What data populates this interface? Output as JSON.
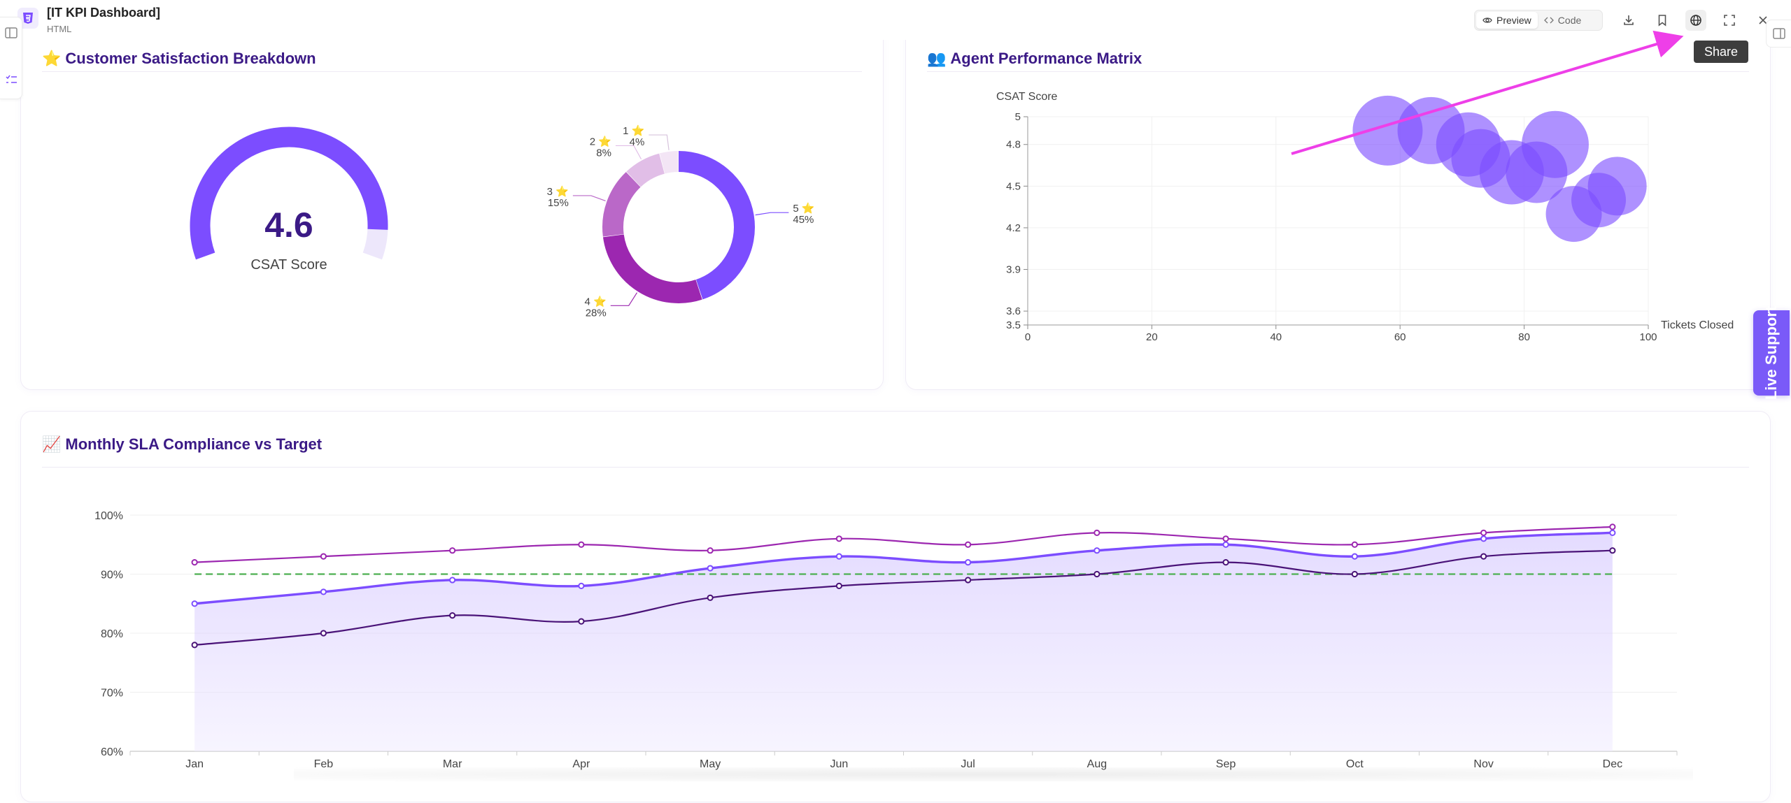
{
  "header": {
    "file_title": "[IT KPI Dashboard]",
    "file_type": "HTML",
    "preview_label": "Preview",
    "code_label": "Code",
    "share_tooltip": "Share",
    "icons": [
      "download-icon",
      "bookmark-icon",
      "globe-icon",
      "expand-icon",
      "close-icon"
    ]
  },
  "live_support_label": "Live Support",
  "csat_card": {
    "icon": "⭐",
    "title": "Customer Satisfaction Breakdown",
    "gauge": {
      "value": "4.6",
      "label": "CSAT Score",
      "fraction": 0.92
    }
  },
  "agent_card": {
    "icon": "👥",
    "title": "Agent Performance Matrix"
  },
  "sla_card": {
    "icon": "📈",
    "title": "Monthly SLA Compliance vs Target"
  },
  "colors": {
    "accent": "#7c4dff",
    "title": "#3b1a86",
    "target_line": "#4caf50",
    "series_dark": "#4a1378",
    "series_mid": "#7c4dff",
    "series_top": "#9c27b0"
  },
  "chart_data": [
    {
      "type": "pie",
      "variant": "doughnut",
      "labels": [
        "5 ⭐",
        "4 ⭐",
        "3 ⭐",
        "2 ⭐",
        "1 ⭐"
      ],
      "values": [
        45,
        28,
        15,
        8,
        4
      ],
      "value_labels": [
        "45%",
        "28%",
        "15%",
        "8%",
        "4%"
      ],
      "colors": [
        "#7c4dff",
        "#9c27b0",
        "#ba68c8",
        "#e1bee7",
        "#f3e5f5"
      ]
    },
    {
      "type": "scatter",
      "variant": "bubble",
      "xlabel": "Tickets Closed",
      "ylabel": "CSAT Score",
      "xlim": [
        0,
        100
      ],
      "ylim": [
        3.5,
        5
      ],
      "x_ticks": [
        "0",
        "20",
        "40",
        "60",
        "80",
        "100"
      ],
      "y_ticks": [
        "3.5",
        "3.6",
        "3.9",
        "4.2",
        "4.5",
        "4.8",
        "5"
      ],
      "points": [
        {
          "x": 58,
          "y": 4.9
        },
        {
          "x": 65,
          "y": 4.9
        },
        {
          "x": 71,
          "y": 4.8
        },
        {
          "x": 73,
          "y": 4.7
        },
        {
          "x": 78,
          "y": 4.6
        },
        {
          "x": 82,
          "y": 4.6
        },
        {
          "x": 85,
          "y": 4.8
        },
        {
          "x": 88,
          "y": 4.3
        },
        {
          "x": 92,
          "y": 4.4
        },
        {
          "x": 95,
          "y": 4.5
        }
      ]
    },
    {
      "type": "line",
      "categories": [
        "Jan",
        "Feb",
        "Mar",
        "Apr",
        "May",
        "Jun",
        "Jul",
        "Aug",
        "Sep",
        "Oct",
        "Nov",
        "Dec"
      ],
      "ylim": [
        60,
        100
      ],
      "y_ticks": [
        "60%",
        "70%",
        "80%",
        "90%",
        "100%"
      ],
      "target": 90,
      "series": [
        {
          "values": [
            92,
            93,
            94,
            95,
            94,
            96,
            95,
            97,
            96,
            95,
            97,
            98
          ]
        },
        {
          "values": [
            85,
            87,
            89,
            88,
            91,
            93,
            92,
            94,
            95,
            93,
            96,
            97
          ]
        },
        {
          "values": [
            78,
            80,
            83,
            82,
            86,
            88,
            89,
            90,
            92,
            90,
            93,
            94
          ]
        }
      ]
    }
  ]
}
